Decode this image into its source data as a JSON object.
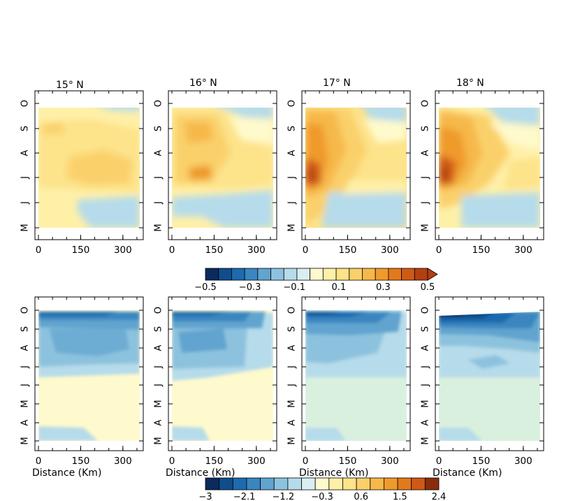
{
  "chart_data": {
    "type": "heatmap",
    "top_row": {
      "panels": [
        {
          "title": "15° N",
          "x_ticks": [
            "0",
            "150",
            "300"
          ],
          "x_range_km": [
            0,
            360
          ],
          "y_ticks": [
            "M",
            "J",
            "J",
            "A",
            "S",
            "O"
          ]
        },
        {
          "title": "16° N",
          "x_ticks": [
            "0",
            "150",
            "300"
          ],
          "x_range_km": [
            0,
            360
          ],
          "y_ticks": [
            "M",
            "J",
            "J",
            "A",
            "S",
            "O"
          ]
        },
        {
          "title": "17° N",
          "x_ticks": [
            "0",
            "150",
            "300"
          ],
          "x_range_km": [
            0,
            360
          ],
          "y_ticks": [
            "M",
            "J",
            "J",
            "A",
            "S",
            "O"
          ]
        },
        {
          "title": "18° N",
          "x_ticks": [
            "0",
            "150",
            "300"
          ],
          "x_range_km": [
            0,
            360
          ],
          "y_ticks": [
            "M",
            "J",
            "J",
            "A",
            "S",
            "O"
          ]
        }
      ],
      "colorbar": {
        "labels": [
          "−0.5",
          "−0.3",
          "−0.1",
          "0.1",
          "0.3",
          "0.5"
        ],
        "colors": [
          "#0b2a5e",
          "#0f4d8c",
          "#1d6aae",
          "#3a86c0",
          "#61a4cf",
          "#8dc2de",
          "#b6dbea",
          "#d8eef3",
          "#fffacd",
          "#fff0a8",
          "#fde38a",
          "#fad06b",
          "#f6b849",
          "#ef9a2c",
          "#e27a1d",
          "#cf5a16",
          "#b34010"
        ],
        "extend": "max"
      }
    },
    "bottom_row": {
      "panels": [
        {
          "xlabel": "Distance (Km)",
          "x_ticks": [
            "0",
            "150",
            "300"
          ],
          "x_range_km": [
            0,
            360
          ],
          "y_ticks": [
            "M",
            "A",
            "M",
            "J",
            "J",
            "A",
            "S",
            "O"
          ]
        },
        {
          "xlabel": "Distance (Km)",
          "x_ticks": [
            "0",
            "150",
            "300"
          ],
          "x_range_km": [
            0,
            360
          ],
          "y_ticks": [
            "M",
            "A",
            "M",
            "J",
            "J",
            "A",
            "S",
            "O"
          ]
        },
        {
          "xlabel": "Distance (Km)",
          "x_ticks": [
            "0",
            "150",
            "300"
          ],
          "x_range_km": [
            0,
            360
          ],
          "y_ticks": [
            "M",
            "A",
            "M",
            "J",
            "J",
            "A",
            "S",
            "O"
          ]
        },
        {
          "xlabel": "Distance (Km)",
          "x_ticks": [
            "0",
            "150",
            "300"
          ],
          "x_range_km": [
            0,
            360
          ],
          "y_ticks": [
            "M",
            "A",
            "M",
            "J",
            "J",
            "A",
            "S",
            "O"
          ]
        }
      ],
      "colorbar": {
        "labels": [
          "−3",
          "−2.1",
          "−1.2",
          "−0.3",
          "0.6",
          "1.5",
          "2.4"
        ],
        "colors": [
          "#0b2a5e",
          "#0f4d8c",
          "#1d6aae",
          "#3a86c0",
          "#61a4cf",
          "#8dc2de",
          "#b6dbea",
          "#d8eef3",
          "#fffacd",
          "#fff0a8",
          "#fde38a",
          "#fad06b",
          "#f6b849",
          "#ef9a2c",
          "#e27a1d",
          "#cf5a16",
          "#8a2c0c"
        ],
        "extend": "none"
      }
    }
  }
}
